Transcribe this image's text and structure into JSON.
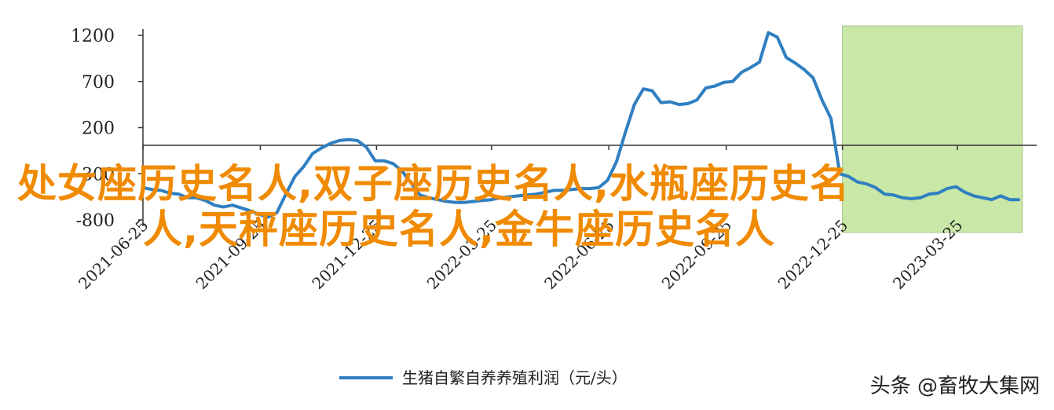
{
  "chart_data": {
    "type": "line",
    "title": "",
    "xlabel": "",
    "ylabel": "",
    "ylim": [
      -800,
      1200
    ],
    "yticks": [
      1200,
      700,
      200,
      -300,
      -800
    ],
    "xticks": [
      "2021-06-25",
      "2021-09-25",
      "2021-12-25",
      "2022-03-25",
      "2022-06-25",
      "2022-09-25",
      "2022-12-25",
      "2023-03-25"
    ],
    "highlight_region": {
      "from": "2022-12-25",
      "to": "2023-05-15",
      "color": "#c9e8a8"
    },
    "series": [
      {
        "name": "生猪自繁自养养殖利润（元/头）",
        "color": "#2f7fc1",
        "points": [
          [
            "2021-06-25",
            -450
          ],
          [
            "2021-07-02",
            -470
          ],
          [
            "2021-07-09",
            -480
          ],
          [
            "2021-07-16",
            -510
          ],
          [
            "2021-07-23",
            -520
          ],
          [
            "2021-07-30",
            -560
          ],
          [
            "2021-08-06",
            -560
          ],
          [
            "2021-08-13",
            -590
          ],
          [
            "2021-08-20",
            -640
          ],
          [
            "2021-08-27",
            -660
          ],
          [
            "2021-09-03",
            -640
          ],
          [
            "2021-09-10",
            -670
          ],
          [
            "2021-09-17",
            -700
          ],
          [
            "2021-09-24",
            -740
          ],
          [
            "2021-10-01",
            -770
          ],
          [
            "2021-10-08",
            -720
          ],
          [
            "2021-10-15",
            -520
          ],
          [
            "2021-10-22",
            -330
          ],
          [
            "2021-10-29",
            -220
          ],
          [
            "2021-11-05",
            -80
          ],
          [
            "2021-11-12",
            -20
          ],
          [
            "2021-11-19",
            30
          ],
          [
            "2021-11-26",
            60
          ],
          [
            "2021-12-03",
            70
          ],
          [
            "2021-12-10",
            60
          ],
          [
            "2021-12-17",
            -10
          ],
          [
            "2021-12-24",
            -160
          ],
          [
            "2021-12-31",
            -160
          ],
          [
            "2022-01-07",
            -190
          ],
          [
            "2022-01-14",
            -270
          ],
          [
            "2022-01-21",
            -400
          ],
          [
            "2022-01-28",
            -530
          ],
          [
            "2022-02-04",
            -560
          ],
          [
            "2022-02-11",
            -580
          ],
          [
            "2022-02-18",
            -600
          ],
          [
            "2022-02-25",
            -610
          ],
          [
            "2022-03-04",
            -610
          ],
          [
            "2022-03-11",
            -600
          ],
          [
            "2022-03-18",
            -590
          ],
          [
            "2022-03-25",
            -580
          ],
          [
            "2022-04-01",
            -560
          ],
          [
            "2022-04-08",
            -550
          ],
          [
            "2022-04-15",
            -540
          ],
          [
            "2022-04-22",
            -530
          ],
          [
            "2022-04-29",
            -520
          ],
          [
            "2022-05-06",
            -500
          ],
          [
            "2022-05-13",
            -480
          ],
          [
            "2022-05-20",
            -480
          ],
          [
            "2022-05-27",
            -470
          ],
          [
            "2022-06-03",
            -460
          ],
          [
            "2022-06-10",
            -460
          ],
          [
            "2022-06-17",
            -450
          ],
          [
            "2022-06-24",
            -370
          ],
          [
            "2022-07-01",
            -170
          ],
          [
            "2022-07-08",
            150
          ],
          [
            "2022-07-15",
            450
          ],
          [
            "2022-07-22",
            620
          ],
          [
            "2022-07-29",
            600
          ],
          [
            "2022-08-05",
            470
          ],
          [
            "2022-08-12",
            480
          ],
          [
            "2022-08-19",
            450
          ],
          [
            "2022-08-26",
            460
          ],
          [
            "2022-09-02",
            500
          ],
          [
            "2022-09-09",
            630
          ],
          [
            "2022-09-16",
            650
          ],
          [
            "2022-09-23",
            690
          ],
          [
            "2022-09-30",
            700
          ],
          [
            "2022-10-07",
            800
          ],
          [
            "2022-10-14",
            850
          ],
          [
            "2022-10-21",
            910
          ],
          [
            "2022-10-28",
            1230
          ],
          [
            "2022-11-04",
            1180
          ],
          [
            "2022-11-11",
            960
          ],
          [
            "2022-11-18",
            900
          ],
          [
            "2022-11-25",
            830
          ],
          [
            "2022-12-02",
            740
          ],
          [
            "2022-12-09",
            500
          ],
          [
            "2022-12-16",
            300
          ],
          [
            "2022-12-23",
            -300
          ],
          [
            "2022-12-30",
            -330
          ],
          [
            "2023-01-06",
            -390
          ],
          [
            "2023-01-13",
            -410
          ],
          [
            "2023-01-20",
            -450
          ],
          [
            "2023-01-27",
            -520
          ],
          [
            "2023-02-03",
            -530
          ],
          [
            "2023-02-10",
            -560
          ],
          [
            "2023-02-17",
            -570
          ],
          [
            "2023-02-24",
            -560
          ],
          [
            "2023-03-03",
            -520
          ],
          [
            "2023-03-10",
            -510
          ],
          [
            "2023-03-17",
            -460
          ],
          [
            "2023-03-24",
            -440
          ],
          [
            "2023-03-31",
            -500
          ],
          [
            "2023-04-07",
            -540
          ],
          [
            "2023-04-14",
            -560
          ],
          [
            "2023-04-21",
            -580
          ],
          [
            "2023-04-28",
            -540
          ],
          [
            "2023-05-05",
            -580
          ],
          [
            "2023-05-12",
            -580
          ]
        ]
      }
    ]
  },
  "overlay": {
    "headline_line1": "处女座历史名人,双子座历史名人,水瓶座历史名",
    "headline_line2": "人,天秤座历史名人,金牛座历史名人"
  },
  "legend": {
    "label": "生猪自繁自养养殖利润（元/头）"
  },
  "watermark": {
    "text": "头条 @畜牧大集网"
  },
  "colors": {
    "line": "#2f7fc1",
    "highlight": "#c9e8a8",
    "headline": "#f08a00",
    "axis": "#333333"
  }
}
